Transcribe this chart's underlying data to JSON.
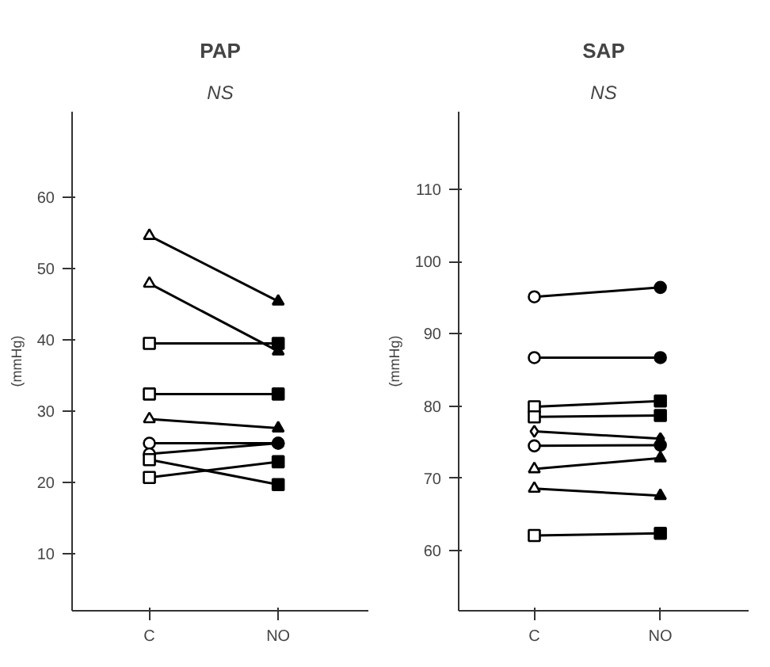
{
  "chart_data": [
    {
      "type": "line",
      "title": "PAP",
      "ylabel": "(mmHg)",
      "annotations": [
        "NS"
      ],
      "categories": [
        "C",
        "NO"
      ],
      "ylim": [
        2,
        72
      ],
      "yticks": [
        10,
        20,
        30,
        40,
        50,
        60
      ],
      "grid": false,
      "series": [
        {
          "color": "#000000",
          "marker": "triangle",
          "values": [
            54.6,
            45.4
          ]
        },
        {
          "color": "#000000",
          "marker": "triangle",
          "values": [
            47.9,
            38.4
          ]
        },
        {
          "color": "#000000",
          "marker": "square",
          "values": [
            39.5,
            39.5
          ]
        },
        {
          "color": "#000000",
          "marker": "square",
          "values": [
            32.4,
            32.4
          ]
        },
        {
          "color": "#000000",
          "marker": "triangle",
          "values": [
            28.9,
            27.6
          ]
        },
        {
          "color": "#000000",
          "marker": "circle",
          "values": [
            25.5,
            25.5
          ]
        },
        {
          "color": "#000000",
          "marker": "circle",
          "values": [
            24.0,
            25.5
          ]
        },
        {
          "color": "#000000",
          "marker": "square",
          "values": [
            23.2,
            19.7
          ]
        },
        {
          "color": "#000000",
          "marker": "square",
          "values": [
            20.7,
            22.9
          ]
        }
      ]
    },
    {
      "type": "line",
      "title": "SAP",
      "ylabel": "(mmHg)",
      "annotations": [
        "NS"
      ],
      "categories": [
        "C",
        "NO"
      ],
      "ylim": [
        51.7,
        120.7
      ],
      "yticks": [
        60,
        70,
        80,
        90,
        100,
        110
      ],
      "grid": false,
      "series": [
        {
          "color": "#000000",
          "marker": "circle",
          "values": [
            95.1,
            96.4
          ]
        },
        {
          "color": "#000000",
          "marker": "circle",
          "values": [
            86.7,
            86.7
          ]
        },
        {
          "color": "#000000",
          "marker": "square",
          "values": [
            79.9,
            80.7
          ]
        },
        {
          "color": "#000000",
          "marker": "square",
          "values": [
            78.5,
            78.7
          ]
        },
        {
          "color": "#000000",
          "marker": "diamond",
          "values": [
            76.5,
            75.5
          ]
        },
        {
          "color": "#000000",
          "marker": "circle",
          "values": [
            74.5,
            74.6
          ]
        },
        {
          "color": "#000000",
          "marker": "triangle",
          "values": [
            71.3,
            72.8
          ]
        },
        {
          "color": "#000000",
          "marker": "triangle",
          "values": [
            68.6,
            67.6
          ]
        },
        {
          "color": "#000000",
          "marker": "square",
          "values": [
            62.1,
            62.4
          ]
        }
      ]
    }
  ]
}
